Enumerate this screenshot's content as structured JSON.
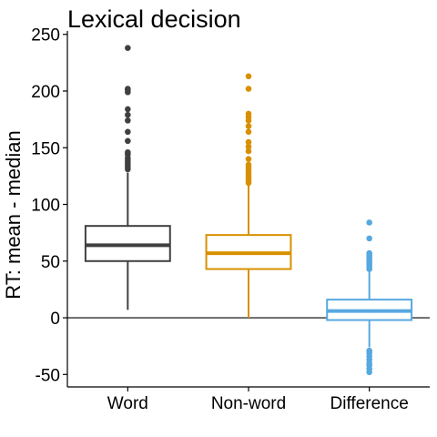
{
  "chart_data": {
    "type": "box",
    "title": "Lexical decision",
    "xlabel": "",
    "ylabel": "RT: mean - median",
    "ylim": [
      -61,
      253
    ],
    "yticks": [
      -50,
      0,
      50,
      100,
      150,
      200,
      250
    ],
    "ytick_labels": [
      "-50",
      "0",
      "50",
      "100",
      "150",
      "200",
      "250"
    ],
    "reference_line": 0,
    "grid": false,
    "legend": "none",
    "categories": [
      "Word",
      "Non-word",
      "Difference"
    ],
    "series": [
      {
        "category": "Word",
        "color": "#404040",
        "q1": 50,
        "median": 64,
        "q3": 81,
        "whisker_low": 7,
        "whisker_high": 128,
        "outliers": [
          131,
          133,
          135,
          137,
          139,
          141,
          144,
          146,
          156,
          164,
          174,
          179,
          184,
          199,
          201,
          202,
          238
        ]
      },
      {
        "category": "Non-word",
        "color": "#D89000",
        "q1": 43,
        "median": 57,
        "q3": 73,
        "whisker_low": 0,
        "whisker_high": 117,
        "outliers": [
          119,
          121,
          123,
          125,
          127,
          129,
          131,
          133,
          135,
          140,
          147,
          151,
          155,
          164,
          169,
          174,
          177,
          180,
          202,
          213
        ]
      },
      {
        "category": "Difference",
        "color": "#56A8E0",
        "q1": -2,
        "median": 6,
        "q3": 16,
        "whisker_low": -26,
        "whisker_high": 41,
        "outliers": [
          -48,
          -45,
          -42,
          -40,
          -37,
          -34,
          -31,
          -29,
          43,
          45,
          47,
          49,
          51,
          53,
          55,
          57,
          70,
          84
        ]
      }
    ]
  }
}
